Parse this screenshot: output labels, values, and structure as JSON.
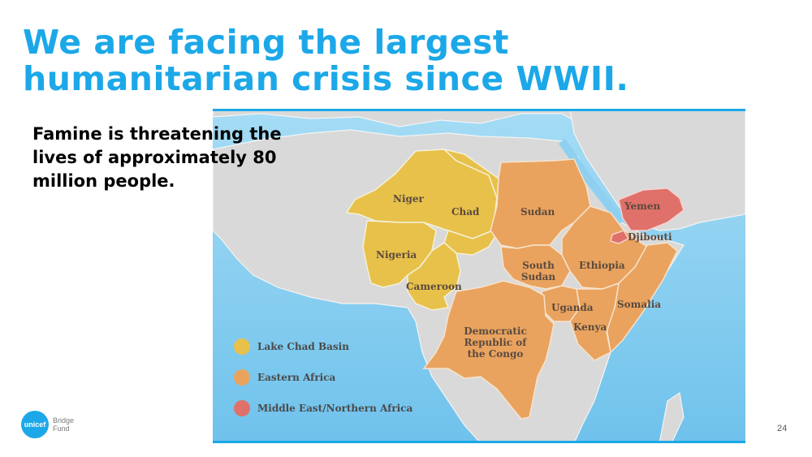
{
  "slide": {
    "title_lines": [
      "We are facing the largest",
      "humanitarian crisis since WWII."
    ],
    "subtitle_lines": [
      "Famine is threatening the",
      "lives of approximately 80",
      "million people."
    ],
    "page_number": "24"
  },
  "map": {
    "countries": [
      {
        "key": "niger",
        "label": "Niger",
        "region": "lake_chad"
      },
      {
        "key": "chad",
        "label": "Chad",
        "region": "lake_chad"
      },
      {
        "key": "nigeria",
        "label": "Nigeria",
        "region": "lake_chad"
      },
      {
        "key": "cameroon",
        "label": "Cameroon",
        "region": "lake_chad"
      },
      {
        "key": "sudan",
        "label": "Sudan",
        "region": "eastern_africa"
      },
      {
        "key": "south_sudan",
        "label": "South Sudan",
        "region": "eastern_africa"
      },
      {
        "key": "ethiopia",
        "label": "Ethiopia",
        "region": "eastern_africa"
      },
      {
        "key": "somalia",
        "label": "Somalia",
        "region": "eastern_africa"
      },
      {
        "key": "uganda",
        "label": "Uganda",
        "region": "eastern_africa"
      },
      {
        "key": "kenya",
        "label": "Kenya",
        "region": "eastern_africa"
      },
      {
        "key": "drc",
        "label": "Democratic Republic of the Congo",
        "region": "eastern_africa"
      },
      {
        "key": "yemen",
        "label": "Yemen",
        "region": "middle_east"
      },
      {
        "key": "djibouti",
        "label": "Djibouti",
        "region": "middle_east"
      }
    ],
    "legend": [
      {
        "label": "Lake Chad Basin",
        "color": "#e8c14b"
      },
      {
        "label": "Eastern Africa",
        "color": "#e9a35f"
      },
      {
        "label": "Middle East/Northern Africa",
        "color": "#df716a"
      }
    ],
    "colors": {
      "ocean": "#8fd0f0",
      "land": "#d9d9d9",
      "lake_chad": "#e8c14b",
      "eastern_africa": "#e9a35f",
      "middle_east": "#df716a",
      "frame": "#1ca8e8"
    }
  },
  "logo": {
    "mark_text": "unicef",
    "text_lines": [
      "Bridge",
      "Fund"
    ]
  }
}
